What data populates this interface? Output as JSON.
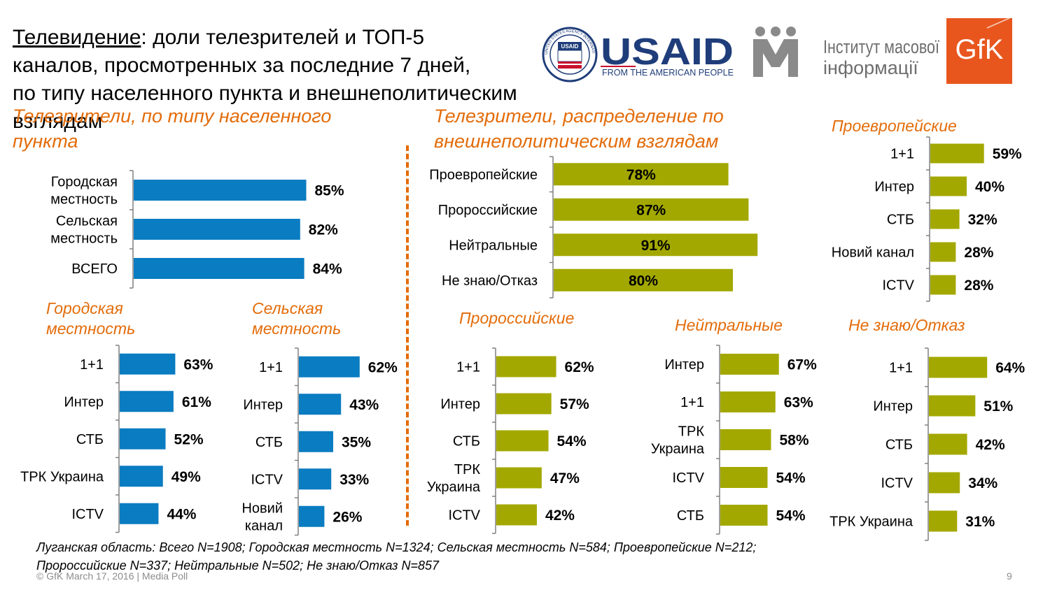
{
  "title": {
    "underlined": "Телевидение",
    "rest_line1": ": доли телезрителей и ТОП-5",
    "line2": "каналов, просмотренных за последние 7 дней,",
    "line3": "по типу населенного пункта и внешнеполитическим взглядам"
  },
  "logos": {
    "usaid_seal_text": "UNITED STATES AGENCY INTERNATIONAL DEVELOPMENT",
    "usaid_seal_inner": "USAID",
    "usaid_word": "USAID",
    "usaid_tagline": "FROM THE AMERICAN PEOPLE",
    "imi_line1": "Інститут масової",
    "imi_line2": "інформації",
    "gfk": "GfK"
  },
  "colors": {
    "blue": "#0A7CC1",
    "olive": "#A3A800",
    "orange": "#E36C0A"
  },
  "panels": {
    "p_settlement": {
      "title_lines": [
        "Телезрители, по типу населенного",
        "пункта"
      ],
      "chart_data": {
        "type": "bar",
        "orientation": "horizontal",
        "categories": [
          [
            "Городская",
            "местность"
          ],
          [
            "Сельская",
            "местность"
          ],
          [
            "ВСЕГО"
          ]
        ],
        "values": [
          85,
          82,
          84
        ],
        "unit": "%",
        "color": "#0A7CC1",
        "label_pos": "outside"
      }
    },
    "p_views": {
      "title_lines": [
        "Телезрители, распределение по",
        "внешнеполитическим взглядам"
      ],
      "chart_data": {
        "type": "bar",
        "orientation": "horizontal",
        "categories": [
          [
            "Проевропейские"
          ],
          [
            "Пророссийские"
          ],
          [
            "Нейтральные"
          ],
          [
            "Не знаю/Отказ"
          ]
        ],
        "values": [
          78,
          87,
          91,
          80
        ],
        "unit": "%",
        "color": "#A3A800",
        "label_pos": "inside"
      }
    },
    "p_proeuro": {
      "title_lines": [
        "Проевропейские"
      ],
      "chart_data": {
        "type": "bar",
        "orientation": "horizontal",
        "categories": [
          [
            "1+1"
          ],
          [
            "Интер"
          ],
          [
            "СТБ"
          ],
          [
            "Новий канал"
          ],
          [
            "ICTV"
          ]
        ],
        "values": [
          59,
          40,
          32,
          28,
          28
        ],
        "unit": "%",
        "color": "#A3A800",
        "label_pos": "outside"
      }
    },
    "p_urban": {
      "title_lines": [
        "Городская",
        "местность"
      ],
      "chart_data": {
        "type": "bar",
        "orientation": "horizontal",
        "categories": [
          [
            "1+1"
          ],
          [
            "Интер"
          ],
          [
            "СТБ"
          ],
          [
            "ТРК Украина"
          ],
          [
            "ICTV"
          ]
        ],
        "values": [
          63,
          61,
          52,
          49,
          44
        ],
        "unit": "%",
        "color": "#0A7CC1",
        "label_pos": "outside"
      }
    },
    "p_rural": {
      "title_lines": [
        "Сельская",
        "местность"
      ],
      "chart_data": {
        "type": "bar",
        "orientation": "horizontal",
        "categories": [
          [
            "1+1"
          ],
          [
            "Интер"
          ],
          [
            "СТБ"
          ],
          [
            "ICTV"
          ],
          [
            "Новий",
            "канал"
          ]
        ],
        "values": [
          62,
          43,
          35,
          33,
          26
        ],
        "unit": "%",
        "color": "#0A7CC1",
        "label_pos": "outside"
      }
    },
    "p_prorus": {
      "title_lines": [
        "Пророссийские"
      ],
      "chart_data": {
        "type": "bar",
        "orientation": "horizontal",
        "categories": [
          [
            "1+1"
          ],
          [
            "Интер"
          ],
          [
            "СТБ"
          ],
          [
            "ТРК",
            "Украина"
          ],
          [
            "ICTV"
          ]
        ],
        "values": [
          62,
          57,
          54,
          47,
          42
        ],
        "unit": "%",
        "color": "#A3A800",
        "label_pos": "outside"
      }
    },
    "p_neutral": {
      "title_lines": [
        "Нейтральные"
      ],
      "chart_data": {
        "type": "bar",
        "orientation": "horizontal",
        "categories": [
          [
            "Интер"
          ],
          [
            "1+1"
          ],
          [
            "ТРК",
            "Украина"
          ],
          [
            "ICTV"
          ],
          [
            "СТБ"
          ]
        ],
        "values": [
          67,
          63,
          58,
          54,
          54
        ],
        "unit": "%",
        "color": "#A3A800",
        "label_pos": "outside"
      }
    },
    "p_dontknow": {
      "title_lines": [
        "Не знаю/Отказ"
      ],
      "chart_data": {
        "type": "bar",
        "orientation": "horizontal",
        "categories": [
          [
            "1+1"
          ],
          [
            "Интер"
          ],
          [
            "СТБ"
          ],
          [
            "ICTV"
          ],
          [
            "ТРК Украина"
          ]
        ],
        "values": [
          64,
          51,
          42,
          34,
          31
        ],
        "unit": "%",
        "color": "#A3A800",
        "label_pos": "outside"
      }
    }
  },
  "footnote": {
    "line1": "Луганская область: Всего N=1908; Городская местность N=1324; Сельская местность N=584; Проевропейские N=212;",
    "line2": "Пророссийские N=337; Нейтральные N=502; Не знаю/Отказ N=857"
  },
  "footer": {
    "copyright": "© GfK March 17, 2016 | Media Poll",
    "page": "9"
  }
}
